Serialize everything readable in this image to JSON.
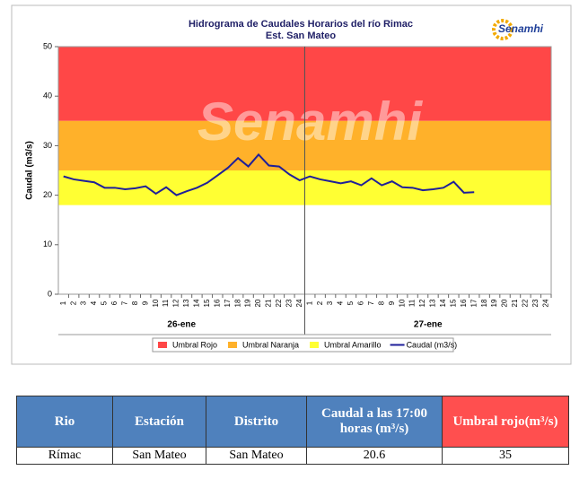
{
  "chart_data": {
    "type": "line",
    "title": "Hidrograma  de Caudales Horarios  del río Rimac",
    "subtitle": "Est. San Mateo",
    "logo": "Senamhi",
    "ylabel": "Caudal (m3/s)",
    "categories": [
      "1",
      "2",
      "3",
      "4",
      "5",
      "6",
      "7",
      "8",
      "9",
      "10",
      "11",
      "12",
      "13",
      "14",
      "15",
      "16",
      "17",
      "18",
      "19",
      "20",
      "21",
      "22",
      "23",
      "24",
      "1",
      "2",
      "3",
      "4",
      "5",
      "6",
      "7",
      "8",
      "9",
      "10",
      "11",
      "12",
      "13",
      "14",
      "15",
      "16",
      "17",
      "18",
      "19",
      "20",
      "21",
      "22",
      "23",
      "24"
    ],
    "groups": [
      "26-ene",
      "27-ene"
    ],
    "ylim": [
      0,
      50
    ],
    "yticks": [
      0,
      10,
      20,
      30,
      40,
      50
    ],
    "thresholds": [
      {
        "name": "Umbral Rojo",
        "color": "#ff4747",
        "range": [
          35,
          50
        ]
      },
      {
        "name": "Umbral Naranja",
        "color": "#ffb12a",
        "range": [
          25,
          35
        ]
      },
      {
        "name": "Umbral Amarillo",
        "color": "#ffff33",
        "range": [
          18,
          25
        ]
      }
    ],
    "series": [
      {
        "name": "Caudal (m3/s)",
        "color": "#1f1f99",
        "values": [
          23.8,
          23.2,
          22.9,
          22.6,
          21.5,
          21.5,
          21.2,
          21.4,
          21.8,
          20.3,
          21.6,
          20.0,
          20.8,
          21.5,
          22.5,
          24.0,
          25.5,
          27.5,
          25.8,
          28.2,
          26.0,
          25.8,
          24.2,
          23.0,
          23.8,
          23.2,
          22.8,
          22.4,
          22.8,
          22.0,
          23.4,
          22.0,
          22.8,
          21.6,
          21.5,
          21.0,
          21.2,
          21.5,
          22.7,
          20.5,
          20.6,
          null,
          null,
          null,
          null,
          null,
          null,
          null
        ]
      }
    ]
  },
  "table": {
    "headers": [
      "Rio",
      "Estación",
      "Distrito",
      "Caudal a las 17:00 horas (m³/s)",
      "Umbral rojo(m³/s)"
    ],
    "rows": [
      [
        "Rímac",
        "San Mateo",
        "San Mateo",
        20.6,
        35
      ]
    ]
  }
}
